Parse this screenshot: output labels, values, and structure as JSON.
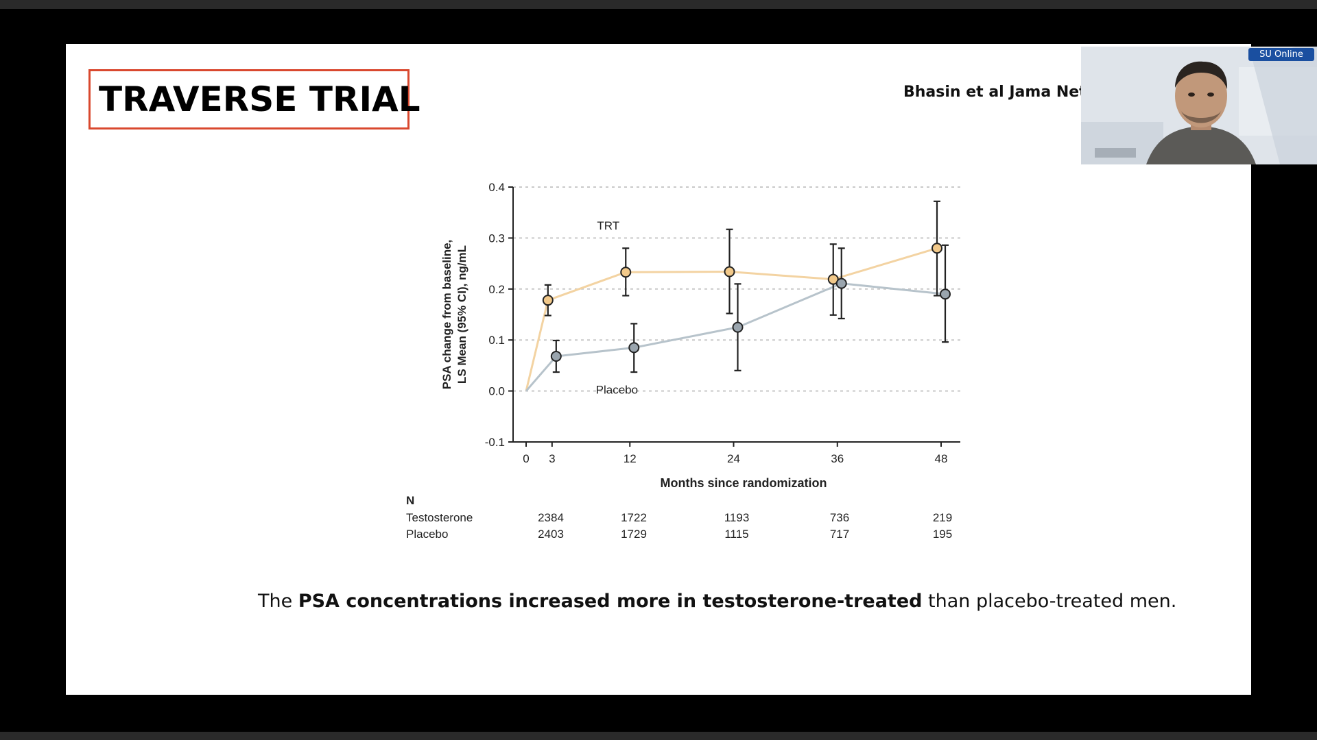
{
  "slide": {
    "title": "TRAVERSE TRIAL",
    "citation": "Bhasin et al Jama Net",
    "caption": {
      "pre": "The ",
      "bold": "PSA concentrations increased more in testosterone-treated",
      "post": " than placebo-treated men."
    }
  },
  "webcam": {
    "badge": "SU Online"
  },
  "chart_data": {
    "type": "line",
    "ylabel_line1": "PSA change from baseline,",
    "ylabel_line2": "LS Mean (95% CI), ng/mL",
    "xlabel": "Months since randomization",
    "ylim": [
      -0.1,
      0.4
    ],
    "yticks": [
      "0.4",
      "0.3",
      "0.2",
      "0.1",
      "0.0",
      "-0.1"
    ],
    "xticks": [
      "0",
      "3",
      "12",
      "24",
      "36",
      "48"
    ],
    "grid": "dashed-horizontal",
    "colors": {
      "trt": "#f2c98a",
      "trt_line": "#f3d3a2",
      "placebo": "#9aa5ae",
      "placebo_line": "#b7c3cb"
    },
    "series": [
      {
        "name": "TRT",
        "points": [
          {
            "x": 0,
            "y": 0.0
          },
          {
            "x": 3,
            "y": 0.178,
            "lo": 0.148,
            "hi": 0.208
          },
          {
            "x": 12,
            "y": 0.233,
            "lo": 0.187,
            "hi": 0.28
          },
          {
            "x": 24,
            "y": 0.234,
            "lo": 0.152,
            "hi": 0.317
          },
          {
            "x": 36,
            "y": 0.219,
            "lo": 0.149,
            "hi": 0.288
          },
          {
            "x": 48,
            "y": 0.28,
            "lo": 0.187,
            "hi": 0.372
          }
        ]
      },
      {
        "name": "Placebo",
        "points": [
          {
            "x": 0,
            "y": 0.0
          },
          {
            "x": 3,
            "y": 0.068,
            "lo": 0.037,
            "hi": 0.099
          },
          {
            "x": 12,
            "y": 0.085,
            "lo": 0.037,
            "hi": 0.132
          },
          {
            "x": 24,
            "y": 0.125,
            "lo": 0.04,
            "hi": 0.21
          },
          {
            "x": 36,
            "y": 0.211,
            "lo": 0.142,
            "hi": 0.28
          },
          {
            "x": 48,
            "y": 0.19,
            "lo": 0.096,
            "hi": 0.286
          }
        ]
      }
    ],
    "n_table": {
      "header": "N",
      "rows": [
        {
          "label": "Testosterone",
          "values": [
            "2384",
            "1722",
            "1193",
            "736",
            "219"
          ]
        },
        {
          "label": "Placebo",
          "values": [
            "2403",
            "1729",
            "1115",
            "717",
            "195"
          ]
        }
      ]
    }
  }
}
